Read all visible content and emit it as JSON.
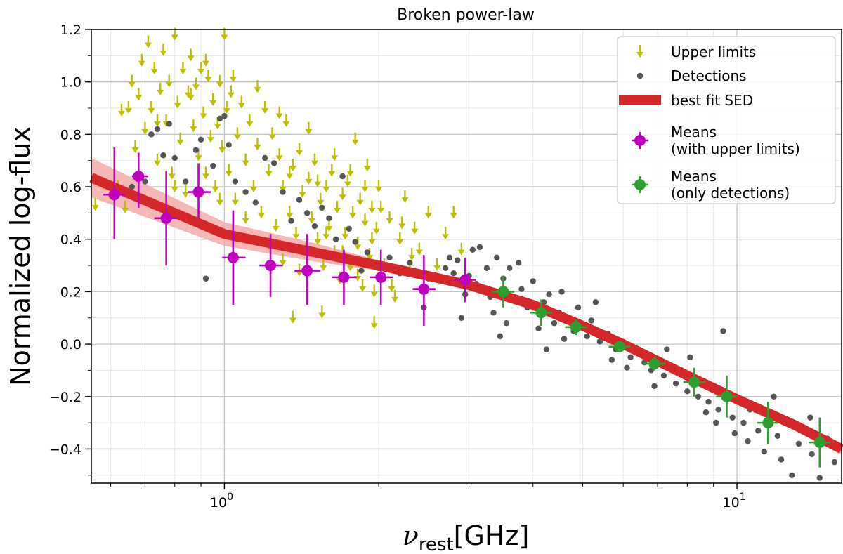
{
  "chart_data": {
    "type": "scatter",
    "title": "Broken power-law",
    "xlabel_symbol": "ν",
    "xlabel_subscript": "rest",
    "xlabel_unit": "[GHz]",
    "ylabel": "Normalized log-flux",
    "xscale": "log",
    "xlim": [
      0.55,
      16
    ],
    "ylim": [
      -0.53,
      1.2
    ],
    "grid": true,
    "x_major_ticks": [
      {
        "value": 1,
        "base": "10",
        "exp": "0"
      },
      {
        "value": 10,
        "base": "10",
        "exp": "1"
      }
    ],
    "y_ticks": [
      -0.4,
      -0.2,
      0.0,
      0.2,
      0.4,
      0.6,
      0.8,
      1.0,
      1.2
    ],
    "y_tick_labels": [
      "−0.4",
      "−0.2",
      "0.0",
      "0.2",
      "0.4",
      "0.6",
      "0.8",
      "1.0",
      "1.2"
    ],
    "legend_position": "top-right",
    "legend": [
      {
        "label": "Upper limits",
        "marker": "down-arrow",
        "color": "#bfbf00"
      },
      {
        "label": "Detections",
        "marker": "circle",
        "color": "#555555"
      },
      {
        "label": "best fit SED",
        "marker": "thick-line",
        "color": "#d62728"
      },
      {
        "label": "Means",
        "label2": "(with upper limits)",
        "marker": "errorbar-circle",
        "color": "#c000c0"
      },
      {
        "label": "Means",
        "label2": "(only detections)",
        "marker": "errorbar-circle",
        "color": "#2ca02c"
      }
    ],
    "fit": {
      "name": "best fit SED",
      "color": "#d62728",
      "band_color": "#f4aaaa",
      "x": [
        0.55,
        1.0,
        1.5,
        2.0,
        2.5,
        3.0,
        4.0,
        5.0,
        6.0,
        8.0,
        10.0,
        13.0,
        16.0
      ],
      "y": [
        0.635,
        0.42,
        0.35,
        0.3,
        0.26,
        0.225,
        0.15,
        0.07,
        0.0,
        -0.12,
        -0.21,
        -0.31,
        -0.4
      ],
      "band_lower": [
        0.56,
        0.375,
        0.315,
        0.28,
        0.245,
        0.21,
        0.14,
        0.065,
        0.0,
        -0.11,
        -0.2,
        -0.295,
        -0.38
      ],
      "band_upper": [
        0.71,
        0.465,
        0.385,
        0.32,
        0.275,
        0.24,
        0.16,
        0.075,
        0.0,
        -0.13,
        -0.22,
        -0.325,
        -0.42
      ]
    },
    "means_with_upper_limits": {
      "name": "Means (with upper limits)",
      "color": "#c000c0",
      "points": [
        {
          "x": 0.61,
          "y": 0.57,
          "ylow": 0.4,
          "yhigh": 0.75,
          "xlow": 0.58,
          "xhigh": 0.64
        },
        {
          "x": 0.68,
          "y": 0.64,
          "ylow": 0.52,
          "yhigh": 0.73,
          "xlow": 0.66,
          "xhigh": 0.71
        },
        {
          "x": 0.77,
          "y": 0.48,
          "ylow": 0.3,
          "yhigh": 0.66,
          "xlow": 0.73,
          "xhigh": 0.81
        },
        {
          "x": 0.89,
          "y": 0.58,
          "ylow": 0.48,
          "yhigh": 0.69,
          "xlow": 0.85,
          "xhigh": 0.94
        },
        {
          "x": 1.04,
          "y": 0.33,
          "ylow": 0.15,
          "yhigh": 0.51,
          "xlow": 0.99,
          "xhigh": 1.1
        },
        {
          "x": 1.23,
          "y": 0.3,
          "ylow": 0.18,
          "yhigh": 0.42,
          "xlow": 1.17,
          "xhigh": 1.3
        },
        {
          "x": 1.45,
          "y": 0.28,
          "ylow": 0.15,
          "yhigh": 0.42,
          "xlow": 1.37,
          "xhigh": 1.54
        },
        {
          "x": 1.71,
          "y": 0.255,
          "ylow": 0.15,
          "yhigh": 0.36,
          "xlow": 1.62,
          "xhigh": 1.81
        },
        {
          "x": 2.02,
          "y": 0.255,
          "ylow": 0.15,
          "yhigh": 0.36,
          "xlow": 1.92,
          "xhigh": 2.13
        },
        {
          "x": 2.45,
          "y": 0.21,
          "ylow": 0.07,
          "yhigh": 0.34,
          "xlow": 2.33,
          "xhigh": 2.58
        },
        {
          "x": 2.95,
          "y": 0.245,
          "ylow": 0.16,
          "yhigh": 0.33,
          "xlow": 2.8,
          "xhigh": 3.1
        }
      ]
    },
    "means_only_detections": {
      "name": "Means (only detections)",
      "color": "#2ca02c",
      "points": [
        {
          "x": 3.5,
          "y": 0.2,
          "ylow": 0.14,
          "yhigh": 0.26,
          "xlow": 3.33,
          "xhigh": 3.68
        },
        {
          "x": 4.15,
          "y": 0.12,
          "ylow": 0.07,
          "yhigh": 0.17,
          "xlow": 3.95,
          "xhigh": 4.36
        },
        {
          "x": 4.85,
          "y": 0.065,
          "ylow": 0.035,
          "yhigh": 0.095,
          "xlow": 4.62,
          "xhigh": 5.1
        },
        {
          "x": 5.9,
          "y": -0.01,
          "ylow": -0.025,
          "yhigh": 0.005,
          "xlow": 5.62,
          "xhigh": 6.2
        },
        {
          "x": 6.9,
          "y": -0.075,
          "ylow": -0.1,
          "yhigh": -0.05,
          "xlow": 6.57,
          "xhigh": 7.25
        },
        {
          "x": 8.25,
          "y": -0.145,
          "ylow": -0.2,
          "yhigh": -0.09,
          "xlow": 7.86,
          "xhigh": 8.66
        },
        {
          "x": 9.55,
          "y": -0.2,
          "ylow": -0.28,
          "yhigh": -0.12,
          "xlow": 9.1,
          "xhigh": 10.0
        },
        {
          "x": 11.5,
          "y": -0.3,
          "ylow": -0.38,
          "yhigh": -0.22,
          "xlow": 10.95,
          "xhigh": 12.05
        },
        {
          "x": 14.5,
          "y": -0.375,
          "ylow": -0.47,
          "yhigh": -0.28,
          "xlow": 13.8,
          "xhigh": 15.2
        }
      ]
    },
    "detections": {
      "name": "Detections",
      "color": "#555555",
      "points": [
        [
          0.66,
          0.6
        ],
        [
          0.7,
          0.62
        ],
        [
          0.72,
          0.8
        ],
        [
          0.74,
          0.82
        ],
        [
          0.76,
          0.72
        ],
        [
          0.78,
          0.84
        ],
        [
          0.8,
          0.71
        ],
        [
          0.84,
          0.62
        ],
        [
          0.88,
          0.74
        ],
        [
          0.9,
          0.78
        ],
        [
          0.92,
          0.25
        ],
        [
          0.95,
          0.68
        ],
        [
          0.98,
          0.86
        ],
        [
          1.0,
          0.87
        ],
        [
          1.02,
          0.76
        ],
        [
          1.05,
          0.62
        ],
        [
          1.1,
          0.58
        ],
        [
          1.15,
          0.54
        ],
        [
          1.2,
          0.71
        ],
        [
          1.25,
          0.69
        ],
        [
          1.3,
          0.58
        ],
        [
          1.35,
          0.47
        ],
        [
          1.4,
          0.55
        ],
        [
          1.45,
          0.5
        ],
        [
          1.5,
          0.45
        ],
        [
          1.55,
          0.52
        ],
        [
          1.6,
          0.48
        ],
        [
          1.65,
          0.4
        ],
        [
          1.7,
          0.64
        ],
        [
          1.75,
          0.44
        ],
        [
          1.8,
          0.39
        ],
        [
          1.85,
          0.28
        ],
        [
          1.9,
          0.35
        ],
        [
          2.0,
          0.29
        ],
        [
          2.1,
          0.33
        ],
        [
          2.2,
          0.27
        ],
        [
          2.3,
          0.31
        ],
        [
          2.45,
          0.14
        ],
        [
          2.5,
          0.25
        ],
        [
          2.6,
          0.26
        ],
        [
          2.7,
          0.29
        ],
        [
          2.75,
          0.33
        ],
        [
          2.8,
          0.27
        ],
        [
          2.85,
          0.32
        ],
        [
          2.9,
          0.1
        ],
        [
          3.0,
          0.26
        ],
        [
          3.05,
          0.36
        ],
        [
          3.1,
          0.23
        ],
        [
          3.15,
          0.37
        ],
        [
          3.2,
          0.21
        ],
        [
          3.25,
          0.29
        ],
        [
          3.3,
          0.18
        ],
        [
          3.35,
          0.12
        ],
        [
          3.4,
          0.33
        ],
        [
          3.45,
          0.03
        ],
        [
          3.5,
          0.25
        ],
        [
          3.6,
          0.29
        ],
        [
          3.7,
          0.17
        ],
        [
          3.8,
          0.21
        ],
        [
          3.9,
          0.14
        ],
        [
          4.0,
          0.24
        ],
        [
          4.1,
          0.06
        ],
        [
          4.2,
          0.16
        ],
        [
          4.3,
          0.19
        ],
        [
          4.4,
          0.08
        ],
        [
          4.5,
          0.12
        ],
        [
          4.6,
          0.02
        ],
        [
          4.7,
          0.1
        ],
        [
          4.8,
          0.05
        ],
        [
          4.9,
          0.14
        ],
        [
          5.0,
          0.07
        ],
        [
          5.1,
          0.03
        ],
        [
          5.2,
          0.09
        ],
        [
          5.4,
          0.01
        ],
        [
          5.6,
          0.04
        ],
        [
          5.8,
          -0.02
        ],
        [
          6.0,
          0.0
        ],
        [
          6.2,
          -0.05
        ],
        [
          6.4,
          -0.02
        ],
        [
          6.6,
          -0.07
        ],
        [
          6.8,
          -0.1
        ],
        [
          7.0,
          -0.06
        ],
        [
          7.2,
          -0.12
        ],
        [
          7.4,
          -0.08
        ],
        [
          7.6,
          -0.15
        ],
        [
          7.8,
          -0.1
        ],
        [
          8.0,
          -0.18
        ],
        [
          8.2,
          -0.12
        ],
        [
          8.4,
          -0.2
        ],
        [
          8.6,
          -0.14
        ],
        [
          8.8,
          -0.22
        ],
        [
          9.0,
          -0.17
        ],
        [
          9.2,
          -0.25
        ],
        [
          9.4,
          0.05
        ],
        [
          9.6,
          -0.19
        ],
        [
          9.8,
          -0.28
        ],
        [
          10.0,
          -0.22
        ],
        [
          10.3,
          -0.3
        ],
        [
          10.6,
          -0.25
        ],
        [
          11.0,
          -0.33
        ],
        [
          11.3,
          -0.41
        ],
        [
          11.6,
          -0.27
        ],
        [
          12.0,
          -0.35
        ],
        [
          12.4,
          -0.3
        ],
        [
          12.8,
          -0.5
        ],
        [
          13.2,
          -0.38
        ],
        [
          13.6,
          -0.32
        ],
        [
          14.0,
          -0.42
        ],
        [
          14.5,
          -0.51
        ],
        [
          15.0,
          -0.36
        ],
        [
          15.5,
          -0.45
        ],
        [
          5.3,
          0.16
        ],
        [
          4.25,
          -0.02
        ],
        [
          3.55,
          0.08
        ],
        [
          6.9,
          -0.16
        ],
        [
          8.1,
          -0.05
        ],
        [
          9.1,
          -0.3
        ],
        [
          10.5,
          -0.37
        ],
        [
          7.3,
          -0.02
        ],
        [
          6.1,
          -0.09
        ],
        [
          4.55,
          0.2
        ],
        [
          3.75,
          0.31
        ],
        [
          2.95,
          0.19
        ],
        [
          5.7,
          -0.06
        ],
        [
          8.7,
          -0.26
        ],
        [
          11.8,
          -0.2
        ],
        [
          13.9,
          -0.28
        ],
        [
          12.2,
          -0.44
        ],
        [
          9.9,
          -0.34
        ]
      ]
    },
    "upper_limits": {
      "name": "Upper limits",
      "color": "#bfbf00",
      "points": [
        [
          0.56,
          0.53
        ],
        [
          0.58,
          0.61
        ],
        [
          0.6,
          0.57
        ],
        [
          0.62,
          0.6
        ],
        [
          0.63,
          0.89
        ],
        [
          0.64,
          0.52
        ],
        [
          0.65,
          0.9
        ],
        [
          0.66,
          1.0
        ],
        [
          0.67,
          0.75
        ],
        [
          0.68,
          0.95
        ],
        [
          0.69,
          1.08
        ],
        [
          0.7,
          0.82
        ],
        [
          0.71,
          1.15
        ],
        [
          0.72,
          0.9
        ],
        [
          0.73,
          1.05
        ],
        [
          0.74,
          0.7
        ],
        [
          0.75,
          0.97
        ],
        [
          0.76,
          1.12
        ],
        [
          0.77,
          0.85
        ],
        [
          0.78,
          1.0
        ],
        [
          0.79,
          0.65
        ],
        [
          0.8,
          1.18
        ],
        [
          0.81,
          0.92
        ],
        [
          0.82,
          0.78
        ],
        [
          0.83,
          1.05
        ],
        [
          0.84,
          0.58
        ],
        [
          0.85,
          0.96
        ],
        [
          0.86,
          1.1
        ],
        [
          0.87,
          0.83
        ],
        [
          0.88,
          0.99
        ],
        [
          0.89,
          0.72
        ],
        [
          0.9,
          1.05
        ],
        [
          0.91,
          0.88
        ],
        [
          0.92,
          0.65
        ],
        [
          0.93,
          1.02
        ],
        [
          0.94,
          0.79
        ],
        [
          0.95,
          0.93
        ],
        [
          0.96,
          0.6
        ],
        [
          0.97,
          0.84
        ],
        [
          0.98,
          1.0
        ],
        [
          0.99,
          0.75
        ],
        [
          1.0,
          1.18
        ],
        [
          1.01,
          0.9
        ],
        [
          1.02,
          0.66
        ],
        [
          1.03,
          0.96
        ],
        [
          1.05,
          0.55
        ],
        [
          1.06,
          0.8
        ],
        [
          1.08,
          0.92
        ],
        [
          1.1,
          0.7
        ],
        [
          1.12,
          0.85
        ],
        [
          1.14,
          0.6
        ],
        [
          1.16,
          0.76
        ],
        [
          1.18,
          0.5
        ],
        [
          1.2,
          0.9
        ],
        [
          1.22,
          0.66
        ],
        [
          1.24,
          0.8
        ],
        [
          1.26,
          0.45
        ],
        [
          1.28,
          0.72
        ],
        [
          1.3,
          0.6
        ],
        [
          1.32,
          0.85
        ],
        [
          1.34,
          0.5
        ],
        [
          1.36,
          0.68
        ],
        [
          1.38,
          0.42
        ],
        [
          1.4,
          0.74
        ],
        [
          1.42,
          0.58
        ],
        [
          1.44,
          0.36
        ],
        [
          1.46,
          0.63
        ],
        [
          1.48,
          0.48
        ],
        [
          1.5,
          0.7
        ],
        [
          1.52,
          0.4
        ],
        [
          1.54,
          0.55
        ],
        [
          1.56,
          0.3
        ],
        [
          1.58,
          0.6
        ],
        [
          1.6,
          0.45
        ],
        [
          1.62,
          0.66
        ],
        [
          1.64,
          0.35
        ],
        [
          1.66,
          0.52
        ],
        [
          1.68,
          0.25
        ],
        [
          1.7,
          0.57
        ],
        [
          1.72,
          0.42
        ],
        [
          1.74,
          0.62
        ],
        [
          1.76,
          0.3
        ],
        [
          1.78,
          0.5
        ],
        [
          1.8,
          0.78
        ],
        [
          1.82,
          0.38
        ],
        [
          1.84,
          0.55
        ],
        [
          1.86,
          0.22
        ],
        [
          1.88,
          0.47
        ],
        [
          1.9,
          0.68
        ],
        [
          1.92,
          0.34
        ],
        [
          1.94,
          0.52
        ],
        [
          1.96,
          0.2
        ],
        [
          1.98,
          0.44
        ],
        [
          2.0,
          0.6
        ],
        [
          2.05,
          0.3
        ],
        [
          2.1,
          0.48
        ],
        [
          2.15,
          0.18
        ],
        [
          2.2,
          0.4
        ],
        [
          2.25,
          0.56
        ],
        [
          2.3,
          0.28
        ],
        [
          2.35,
          0.44
        ],
        [
          2.4,
          0.36
        ],
        [
          2.5,
          0.5
        ],
        [
          2.6,
          0.3
        ],
        [
          2.7,
          0.42
        ],
        [
          2.8,
          0.5
        ],
        [
          2.9,
          0.36
        ],
        [
          0.74,
          0.85
        ],
        [
          0.8,
          0.6
        ],
        [
          0.86,
          0.95
        ],
        [
          0.92,
          1.08
        ],
        [
          0.98,
          0.55
        ],
        [
          1.04,
          1.02
        ],
        [
          1.1,
          0.48
        ],
        [
          1.16,
          0.98
        ],
        [
          1.22,
          0.38
        ],
        [
          1.28,
          0.88
        ],
        [
          1.34,
          0.65
        ],
        [
          1.4,
          0.28
        ],
        [
          1.46,
          0.82
        ],
        [
          1.52,
          0.62
        ],
        [
          1.58,
          0.42
        ],
        [
          1.64,
          0.72
        ],
        [
          1.7,
          0.35
        ],
        [
          1.76,
          0.66
        ],
        [
          1.82,
          0.26
        ],
        [
          1.88,
          0.6
        ],
        [
          1.94,
          0.4
        ],
        [
          2.02,
          0.52
        ],
        [
          2.12,
          0.22
        ],
        [
          2.22,
          0.46
        ],
        [
          2.32,
          0.34
        ],
        [
          1.36,
          0.1
        ],
        [
          1.55,
          0.12
        ],
        [
          1.96,
          0.08
        ],
        [
          1.3,
          0.32
        ]
      ]
    }
  }
}
